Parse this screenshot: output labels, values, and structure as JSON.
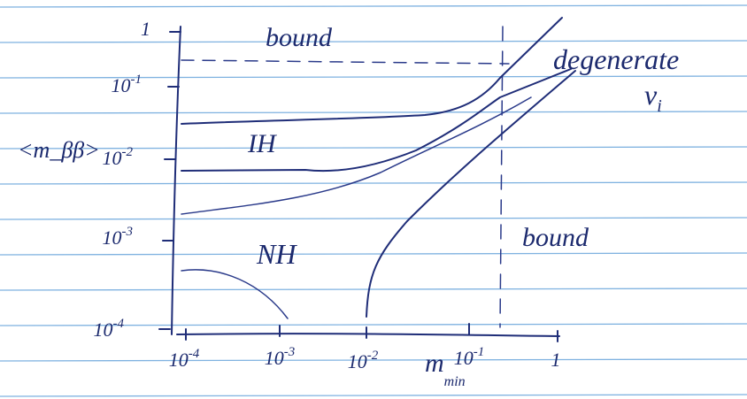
{
  "y_axis": {
    "label": "<m_ββ>",
    "ticks": [
      {
        "base": "1",
        "exp": ""
      },
      {
        "base": "10",
        "exp": "-1"
      },
      {
        "base": "10",
        "exp": "-2"
      },
      {
        "base": "10",
        "exp": "-3"
      },
      {
        "base": "10",
        "exp": "-4"
      }
    ]
  },
  "x_axis": {
    "label_base": "m",
    "label_sub": "min",
    "ticks": [
      {
        "base": "10",
        "exp": "-4"
      },
      {
        "base": "10",
        "exp": "-3"
      },
      {
        "base": "10",
        "exp": "-2"
      },
      {
        "base": "10",
        "exp": "-1"
      },
      {
        "base": "1",
        "exp": ""
      }
    ]
  },
  "regions": {
    "bound_top": "bound",
    "bound_right": "bound",
    "ih": "IH",
    "nh": "NH",
    "degenerate": "degenerate",
    "nu_i": "ν",
    "nu_sub": "i"
  }
}
